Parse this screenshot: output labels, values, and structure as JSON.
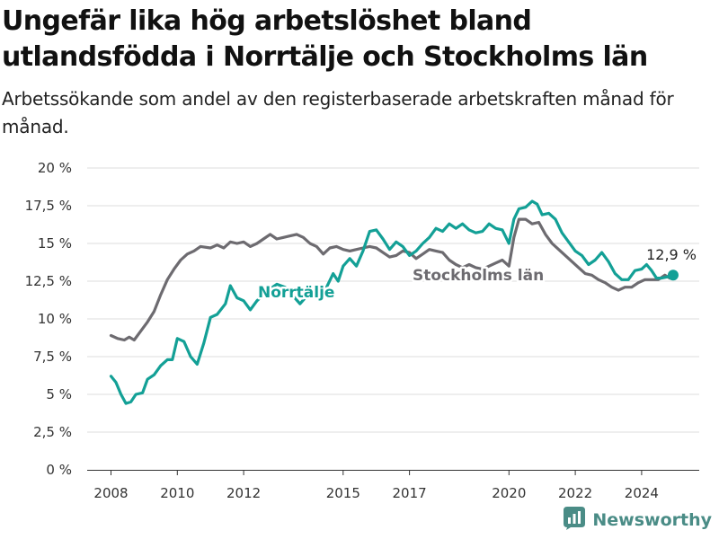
{
  "header": {
    "title": "Ungefär lika hög arbetslöshet bland utlandsfödda i Norrtälje och Stockholms län",
    "subtitle": "Arbetssökande som andel av den registerbaserade arbetskraften månad för månad."
  },
  "brand": {
    "name": "Newsworthy",
    "icon": "newsworthy-chart-logo-icon"
  },
  "colors": {
    "norrtalje": "#13a096",
    "stockholm": "#6d6b70",
    "brand": "#4a8c86"
  },
  "chart_data": {
    "type": "line",
    "x_unit": "year",
    "xlim": [
      2008,
      2025
    ],
    "ylim": [
      0,
      20
    ],
    "y_ticks": [
      0,
      2.5,
      5,
      7.5,
      10,
      12.5,
      15,
      17.5,
      20
    ],
    "y_tick_labels": [
      "0 %",
      "2,5 %",
      "5 %",
      "7,5 %",
      "10 %",
      "12,5 %",
      "15 %",
      "17,5 %",
      "20 %"
    ],
    "x_ticks": [
      2008,
      2010,
      2012,
      2015,
      2017,
      2020,
      2022,
      2024
    ],
    "x_tick_labels": [
      "2008",
      "2010",
      "2012",
      "2015",
      "2017",
      "2020",
      "2022",
      "2024"
    ],
    "grid": true,
    "end_label": "12,9 %",
    "series": [
      {
        "name": "Norrtälje",
        "color": "#13a096",
        "points": [
          [
            2008.0,
            6.2
          ],
          [
            2008.15,
            5.8
          ],
          [
            2008.3,
            5.0
          ],
          [
            2008.45,
            4.4
          ],
          [
            2008.6,
            4.5
          ],
          [
            2008.75,
            5.0
          ],
          [
            2008.95,
            5.1
          ],
          [
            2009.1,
            6.0
          ],
          [
            2009.3,
            6.3
          ],
          [
            2009.5,
            6.9
          ],
          [
            2009.7,
            7.3
          ],
          [
            2009.85,
            7.3
          ],
          [
            2010.0,
            8.7
          ],
          [
            2010.2,
            8.5
          ],
          [
            2010.4,
            7.5
          ],
          [
            2010.6,
            7.0
          ],
          [
            2010.8,
            8.4
          ],
          [
            2011.0,
            10.1
          ],
          [
            2011.2,
            10.3
          ],
          [
            2011.45,
            11.0
          ],
          [
            2011.6,
            12.2
          ],
          [
            2011.8,
            11.4
          ],
          [
            2012.0,
            11.2
          ],
          [
            2012.2,
            10.6
          ],
          [
            2012.4,
            11.2
          ],
          [
            2012.6,
            11.6
          ],
          [
            2012.8,
            12.0
          ],
          [
            2013.0,
            12.3
          ],
          [
            2013.25,
            12.1
          ],
          [
            2013.5,
            11.5
          ],
          [
            2013.7,
            11.0
          ],
          [
            2013.9,
            11.5
          ],
          [
            2014.1,
            11.8
          ],
          [
            2014.3,
            11.5
          ],
          [
            2014.5,
            12.1
          ],
          [
            2014.7,
            13.0
          ],
          [
            2014.85,
            12.5
          ],
          [
            2015.0,
            13.5
          ],
          [
            2015.2,
            14.0
          ],
          [
            2015.4,
            13.5
          ],
          [
            2015.6,
            14.5
          ],
          [
            2015.8,
            15.8
          ],
          [
            2016.0,
            15.9
          ],
          [
            2016.2,
            15.3
          ],
          [
            2016.4,
            14.6
          ],
          [
            2016.6,
            15.1
          ],
          [
            2016.8,
            14.8
          ],
          [
            2017.0,
            14.2
          ],
          [
            2017.2,
            14.5
          ],
          [
            2017.4,
            15.0
          ],
          [
            2017.6,
            15.4
          ],
          [
            2017.8,
            16.0
          ],
          [
            2018.0,
            15.8
          ],
          [
            2018.2,
            16.3
          ],
          [
            2018.4,
            16.0
          ],
          [
            2018.6,
            16.3
          ],
          [
            2018.8,
            15.9
          ],
          [
            2019.0,
            15.7
          ],
          [
            2019.2,
            15.8
          ],
          [
            2019.4,
            16.3
          ],
          [
            2019.6,
            16.0
          ],
          [
            2019.8,
            15.9
          ],
          [
            2020.0,
            15.0
          ],
          [
            2020.15,
            16.6
          ],
          [
            2020.3,
            17.3
          ],
          [
            2020.5,
            17.4
          ],
          [
            2020.7,
            17.8
          ],
          [
            2020.85,
            17.6
          ],
          [
            2021.0,
            16.9
          ],
          [
            2021.2,
            17.0
          ],
          [
            2021.4,
            16.6
          ],
          [
            2021.6,
            15.7
          ],
          [
            2021.8,
            15.1
          ],
          [
            2022.0,
            14.5
          ],
          [
            2022.2,
            14.2
          ],
          [
            2022.4,
            13.6
          ],
          [
            2022.6,
            13.9
          ],
          [
            2022.8,
            14.4
          ],
          [
            2023.0,
            13.8
          ],
          [
            2023.2,
            13.0
          ],
          [
            2023.4,
            12.6
          ],
          [
            2023.6,
            12.6
          ],
          [
            2023.8,
            13.2
          ],
          [
            2024.0,
            13.3
          ],
          [
            2024.15,
            13.6
          ],
          [
            2024.3,
            13.2
          ],
          [
            2024.45,
            12.7
          ],
          [
            2024.6,
            12.7
          ],
          [
            2024.8,
            12.8
          ],
          [
            2024.95,
            12.9
          ]
        ]
      },
      {
        "name": "Stockholms län",
        "color": "#6d6b70",
        "points": [
          [
            2008.0,
            8.9
          ],
          [
            2008.2,
            8.7
          ],
          [
            2008.4,
            8.6
          ],
          [
            2008.55,
            8.8
          ],
          [
            2008.7,
            8.6
          ],
          [
            2008.9,
            9.2
          ],
          [
            2009.1,
            9.8
          ],
          [
            2009.3,
            10.5
          ],
          [
            2009.5,
            11.6
          ],
          [
            2009.7,
            12.6
          ],
          [
            2009.9,
            13.3
          ],
          [
            2010.1,
            13.9
          ],
          [
            2010.3,
            14.3
          ],
          [
            2010.5,
            14.5
          ],
          [
            2010.7,
            14.8
          ],
          [
            2011.0,
            14.7
          ],
          [
            2011.2,
            14.9
          ],
          [
            2011.4,
            14.7
          ],
          [
            2011.6,
            15.1
          ],
          [
            2011.8,
            15.0
          ],
          [
            2012.0,
            15.1
          ],
          [
            2012.2,
            14.8
          ],
          [
            2012.4,
            15.0
          ],
          [
            2012.6,
            15.3
          ],
          [
            2012.8,
            15.6
          ],
          [
            2013.0,
            15.3
          ],
          [
            2013.2,
            15.4
          ],
          [
            2013.4,
            15.5
          ],
          [
            2013.6,
            15.6
          ],
          [
            2013.8,
            15.4
          ],
          [
            2014.0,
            15.0
          ],
          [
            2014.2,
            14.8
          ],
          [
            2014.4,
            14.3
          ],
          [
            2014.6,
            14.7
          ],
          [
            2014.8,
            14.8
          ],
          [
            2015.0,
            14.6
          ],
          [
            2015.2,
            14.5
          ],
          [
            2015.4,
            14.6
          ],
          [
            2015.6,
            14.7
          ],
          [
            2015.8,
            14.8
          ],
          [
            2016.0,
            14.7
          ],
          [
            2016.2,
            14.4
          ],
          [
            2016.4,
            14.1
          ],
          [
            2016.6,
            14.2
          ],
          [
            2016.8,
            14.5
          ],
          [
            2017.0,
            14.4
          ],
          [
            2017.2,
            14.0
          ],
          [
            2017.4,
            14.3
          ],
          [
            2017.6,
            14.6
          ],
          [
            2017.8,
            14.5
          ],
          [
            2018.0,
            14.4
          ],
          [
            2018.2,
            13.9
          ],
          [
            2018.4,
            13.6
          ],
          [
            2018.6,
            13.4
          ],
          [
            2018.8,
            13.6
          ],
          [
            2019.0,
            13.4
          ],
          [
            2019.2,
            13.3
          ],
          [
            2019.4,
            13.5
          ],
          [
            2019.6,
            13.7
          ],
          [
            2019.8,
            13.9
          ],
          [
            2020.0,
            13.5
          ],
          [
            2020.15,
            15.4
          ],
          [
            2020.3,
            16.6
          ],
          [
            2020.5,
            16.6
          ],
          [
            2020.7,
            16.3
          ],
          [
            2020.9,
            16.4
          ],
          [
            2021.1,
            15.6
          ],
          [
            2021.3,
            15.0
          ],
          [
            2021.5,
            14.6
          ],
          [
            2021.7,
            14.2
          ],
          [
            2021.9,
            13.8
          ],
          [
            2022.1,
            13.4
          ],
          [
            2022.3,
            13.0
          ],
          [
            2022.5,
            12.9
          ],
          [
            2022.7,
            12.6
          ],
          [
            2022.9,
            12.4
          ],
          [
            2023.1,
            12.1
          ],
          [
            2023.3,
            11.9
          ],
          [
            2023.5,
            12.1
          ],
          [
            2023.7,
            12.1
          ],
          [
            2023.9,
            12.4
          ],
          [
            2024.1,
            12.6
          ],
          [
            2024.3,
            12.6
          ],
          [
            2024.5,
            12.6
          ],
          [
            2024.7,
            12.9
          ],
          [
            2024.85,
            12.7
          ]
        ]
      }
    ]
  }
}
